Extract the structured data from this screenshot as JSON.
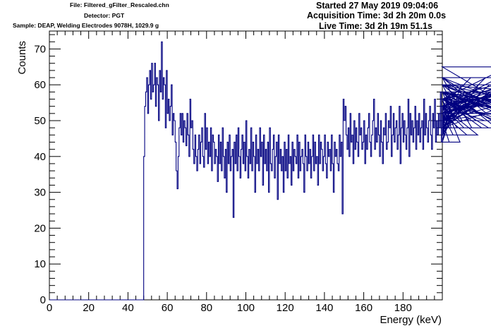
{
  "header": {
    "file": "File: Filtered_gFilter_Rescaled.chn",
    "detector": "Detector: PGT",
    "sample": "Sample: DEAP, Welding Electrodes 9078H, 1029.9 g",
    "started": "Started 27 May 2019 09:04:06",
    "acquisition": "Acquisition Time: 3d 2h 20m 0.0s",
    "live": "Live Time: 3d 2h 19m 51.1s"
  },
  "chart_data": {
    "type": "line",
    "title": "",
    "xlabel": "Energy (keV)",
    "ylabel": "Counts",
    "xlim": [
      0,
      200
    ],
    "ylim": [
      0,
      75
    ],
    "x_ticks": [
      0,
      20,
      40,
      60,
      80,
      100,
      120,
      140,
      160,
      180
    ],
    "y_ticks": [
      0,
      10,
      20,
      30,
      40,
      50,
      60,
      70
    ],
    "grid": false,
    "legend": "none",
    "line_color": "#000080",
    "bin_width_keV": 0.5,
    "series": [
      {
        "x_start": 0,
        "values": [
          0,
          0,
          0,
          0,
          0,
          0,
          0,
          0,
          0,
          0,
          0,
          0,
          0,
          0,
          0,
          0,
          0,
          0,
          0,
          0,
          0,
          0,
          0,
          0,
          0,
          0,
          0,
          0,
          0,
          0,
          0,
          0,
          0,
          0,
          0,
          0,
          0,
          0,
          0,
          0,
          0,
          0,
          0,
          0,
          0,
          0,
          0,
          0,
          0,
          0,
          0,
          0,
          0,
          0,
          0,
          0,
          0,
          0,
          0,
          0,
          0,
          0,
          0,
          0,
          0,
          0,
          0,
          0,
          0,
          0,
          0,
          0,
          0,
          0,
          0,
          0,
          0,
          0,
          0,
          0,
          0,
          0,
          0,
          0,
          0,
          0,
          0,
          0,
          0,
          0,
          0,
          0,
          0,
          0,
          0,
          0,
          40,
          54,
          58,
          62,
          52,
          60,
          64,
          56,
          66,
          58,
          60,
          66,
          54,
          62,
          60,
          50,
          64,
          58,
          72,
          56,
          62,
          60,
          48,
          64,
          52,
          56,
          50,
          54,
          60,
          46,
          52,
          50,
          44,
          36,
          31,
          40,
          48,
          52,
          46,
          52,
          44,
          50,
          48,
          43,
          52,
          46,
          40,
          56,
          48,
          50,
          42,
          38,
          46,
          40,
          36,
          42,
          46,
          38,
          44,
          48,
          40,
          37,
          52,
          42,
          48,
          38,
          44,
          40,
          48,
          36,
          46,
          44,
          38,
          42,
          40,
          33,
          46,
          38,
          44,
          36,
          48,
          40,
          34,
          42,
          30,
          44,
          38,
          46,
          36,
          40,
          42,
          23,
          44,
          38,
          46,
          36,
          48,
          40,
          34,
          42,
          46,
          38,
          44,
          36,
          50,
          40,
          34,
          42,
          38,
          48,
          36,
          44,
          40,
          30,
          46,
          38,
          42,
          36,
          48,
          40,
          44,
          32,
          46,
          38,
          42,
          36,
          44,
          30,
          48,
          38,
          36,
          42,
          46,
          34,
          40,
          44,
          28,
          46,
          38,
          42,
          36,
          40,
          30,
          44,
          36,
          42,
          34,
          46,
          38,
          40,
          32,
          44,
          36,
          42,
          40,
          38,
          46,
          34,
          44,
          36,
          40,
          42,
          38,
          30,
          46,
          40,
          36,
          44,
          38,
          42,
          34,
          40,
          46,
          36,
          44,
          38,
          40,
          32,
          46,
          38,
          44,
          42,
          36,
          40,
          46,
          38,
          34,
          44,
          40,
          42,
          36,
          46,
          38,
          30,
          44,
          40,
          42,
          38,
          36,
          46,
          40,
          44,
          24,
          56,
          50,
          54,
          46,
          42,
          48,
          40,
          52,
          44,
          46,
          38,
          50,
          42,
          48,
          44,
          40,
          52,
          46,
          48,
          42,
          44,
          50,
          38,
          46,
          42,
          48,
          52,
          44,
          40,
          46,
          50,
          56,
          42,
          48,
          44,
          52,
          46,
          40,
          50,
          44,
          38,
          48,
          46,
          52,
          42,
          44,
          50,
          48,
          54,
          40,
          46,
          52,
          44,
          48,
          50,
          42,
          46,
          54,
          38,
          48,
          52,
          44,
          50,
          46,
          42,
          48,
          56,
          40,
          52,
          46,
          50,
          44,
          48,
          54,
          42,
          50,
          46,
          52,
          44,
          48,
          50,
          42,
          56,
          46,
          52,
          48,
          44,
          50,
          54,
          46,
          42,
          52,
          48,
          56,
          44,
          50,
          46,
          52,
          48,
          58,
          44,
          50,
          54,
          46,
          52,
          48,
          56,
          50,
          44,
          54,
          48,
          52,
          46,
          58,
          50,
          54,
          48,
          52,
          56,
          44,
          60,
          50,
          54,
          48,
          56,
          52,
          46,
          58,
          50,
          54,
          62,
          48,
          56,
          52,
          58,
          50,
          54,
          46,
          60,
          52,
          56,
          48,
          58,
          54,
          50,
          62,
          52,
          56,
          48,
          60,
          54,
          58,
          50,
          52,
          56,
          60,
          48,
          58,
          54,
          62,
          52,
          56,
          50,
          60,
          54,
          58,
          52,
          56,
          65,
          54,
          58,
          52,
          60,
          56,
          48,
          62,
          54,
          58,
          50,
          56,
          60,
          52,
          58,
          54,
          62,
          48,
          56,
          52,
          60,
          58,
          54,
          50
        ]
      }
    ]
  }
}
